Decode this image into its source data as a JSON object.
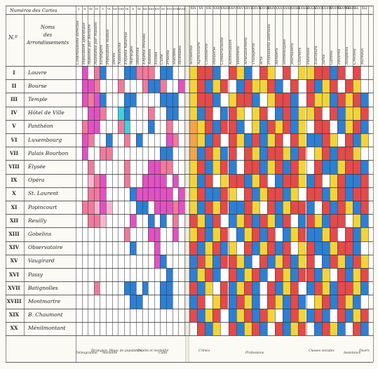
{
  "header": {
    "numero_title": "Numéros des Cartes",
    "no_label": "N.º",
    "noms_label": "Noms\ndes\nArrondissements",
    "column_numbers": [
      "I",
      "II",
      "III",
      "IV",
      "V",
      "VI",
      "VII",
      "VIII",
      "IX",
      "X",
      "XI",
      "XII",
      "XIII",
      "XIV",
      "XV",
      "XVI",
      "XVII",
      "XVIII",
      "XIX",
      "XX",
      "XXI",
      "XXII",
      "XXIII",
      "XXIV",
      "XXV",
      "XXVI",
      "XXVII",
      "XXVIII",
      "XXIX",
      "XXX",
      "XXXI",
      "XXXII",
      "XXXIII",
      "XXXIV",
      "XXXV",
      "XXXVI",
      "XXXVII",
      "XXXVIII",
      "XXXIX",
      "XL",
      "XLI"
    ],
    "column_names": [
      "Contributions directes",
      "Population spécifique",
      "Maisons par hectare",
      "Habitants par maison",
      "Étrangers",
      "Population mobile",
      "Décès",
      "Naissances",
      "Enfants naturels",
      "Mariages",
      "Divorces",
      "Enfants trouvés",
      "Assistés",
      "Écoles",
      "Culte",
      "Prisons",
      "Suicides",
      "Incendies",
      "Accidents",
      "Agriculture",
      "Commerce",
      "Industrie",
      "Constructions",
      "Alimentation",
      "Vêtement",
      "Ameublement",
      "Transports",
      "Arts",
      "Professions libérales",
      "Rentiers",
      "Domestiques",
      "Journaliers",
      "Ouvriers",
      "Patentés",
      "Électeurs",
      "Jurés",
      "Gardes",
      "Pauvres",
      "Hospices",
      "Crèches",
      "Bureaux"
    ]
  },
  "arrondissements": [
    {
      "num": "I",
      "name": "Louvre"
    },
    {
      "num": "II",
      "name": "Bourse"
    },
    {
      "num": "III",
      "name": "Temple"
    },
    {
      "num": "IV",
      "name": "Hôtel de Ville"
    },
    {
      "num": "V",
      "name": "Panthéon"
    },
    {
      "num": "VI",
      "name": "Luxembourg"
    },
    {
      "num": "VII",
      "name": "Palais Bourbon"
    },
    {
      "num": "VIII",
      "name": "Élysée"
    },
    {
      "num": "IX",
      "name": "Opéra"
    },
    {
      "num": "X",
      "name": "St. Laurent"
    },
    {
      "num": "XI",
      "name": "Popincourt"
    },
    {
      "num": "XII",
      "name": "Reuilly"
    },
    {
      "num": "XIII",
      "name": "Gobelins"
    },
    {
      "num": "XIV",
      "name": "Observatoire"
    },
    {
      "num": "XV",
      "name": "Vaugirard"
    },
    {
      "num": "XVI",
      "name": "Passy"
    },
    {
      "num": "XVII",
      "name": "Batignolles"
    },
    {
      "num": "XVIII",
      "name": "Montmartre"
    },
    {
      "num": "XIX",
      "name": "B. Chaumont"
    },
    {
      "num": "XX",
      "name": "Ménilmontant"
    }
  ],
  "footer_groups": [
    "Démographie",
    "Étrangers, Mouv. de population",
    "Mortalité",
    "Dépôts et mortalité",
    "Culte",
    "Crimes",
    "Professions",
    "Classes sociales",
    "Assistance",
    "Divers"
  ],
  "colors": {
    "white": "#ffffff",
    "blue": "#2d7fd4",
    "deep_blue": "#1b55c8",
    "red": "#e44a4a",
    "pink": "#ef7a9c",
    "magenta": "#e052c2",
    "yellow": "#f2d43a",
    "cyan": "#3ed3dc",
    "light_pink": "#f7b4cf",
    "orange": "#f3a34a"
  },
  "grid_left": [
    "WMWPBWWWBBPPPWBBWW",
    "WMMPWWWPWWWPBBPWWM",
    "WMPMBWWWBBWWWWBBBW",
    "WWMMPWWCBWWWPWWBBW",
    "WPMMWWWPCWWWBWWPWW",
    "WMPWWBWWPWBWWWWMPW",
    "WMWWPPWWWWWWWWBBWW",
    "WWPWWWWWPWWWMMPPWW",
    "WWLPMWWWPWWMMMMWMW",
    "WWPPMWWWWBMMMMMMWM",
    "WPPLMLWWWWBBWMMMPM",
    "WWPPLWWWWMWWBWBWPW",
    "WWWWWWWWPWWWMMWWMW",
    "WWWWWWWWWBWWWMWWWW",
    "WWWWWWWWWWWWWMBWWW",
    "WWWWWWWWWWWWWWWBWW",
    "WWWPWWWWBBWBWWBBWW",
    "WWWWWWWWWBBWWWBBWW",
    "WWWWWWWWWWWWWWWWWW",
    "WWWWWWWWWWWWWWWWWW"
  ],
  "grid_right": [
    "YRRBWRYBWRYWRWYYRRBRWRW",
    "YRBYRWBRYYRBWRWRBYRWRYW",
    "YRRBWYRRBWYRRBWRYYBRYRB",
    "YBRWBRYWYRWBRBYYRWRBYYR",
    "OYRBRRBWYBRYRBYWRRWBYRB",
    "OYBRWRYBRBYRWRYBBRYWRBY",
    "OBRYBRWRYBRRYBRWYRBRRYW",
    "YRBYRBWRRBYRBRYWRBBYRRB",
    "YBRWYRRBYRWBRRYBRWYRBBR",
    "YRBBRYWRBYRRBYWRRBYRBRR",
    "YBRYRBBRYWRBYRRBWRBRYBR",
    "RYBRWBYRBRYBRWBRYBRRWYB",
    "YRBYRWBYRBRWBYRBBYRWRBY",
    "RBYRBYWRBYRBRWYRBBYRRBW",
    "BRYBRRYBWRBYRBYRWBRYBRY",
    "BYRBWRBYRBWRYBRRBYWRBYR",
    "RBYWRBYRBWRBYRWBRYBRRYB",
    "BRWYRBRYBWRYBRBWYRBRYBW",
    "RBYRWBYRBRYWBRYBRBWRBYR",
    "WRBYWRBYRBWRBYRWBRYBWRB"
  ]
}
